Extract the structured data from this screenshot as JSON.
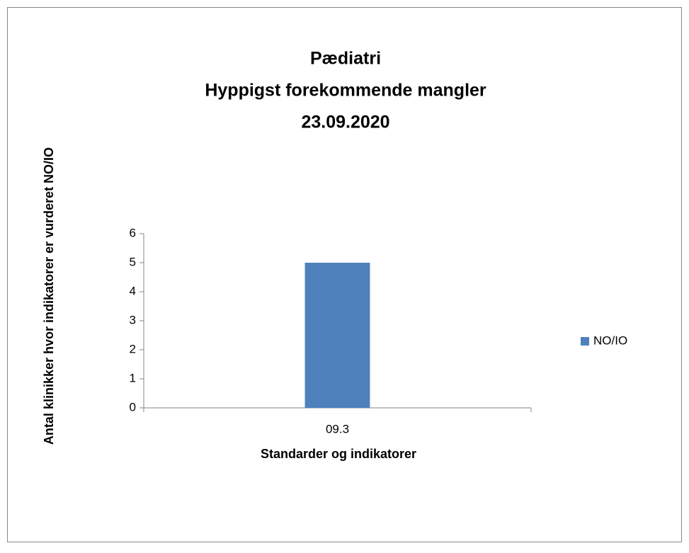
{
  "chart_data": {
    "type": "bar",
    "title": [
      "Pædiatri",
      "Hyppigst forekommende mangler",
      "23.09.2020"
    ],
    "xlabel": "Standarder og indikatorer",
    "ylabel": "Antal klinikker hvor indikatorer er vurderet NO/IO",
    "categories": [
      "09.3"
    ],
    "series": [
      {
        "name": "NO/IO",
        "color": "#4f81bd",
        "values": [
          5
        ]
      }
    ],
    "ylim": [
      0,
      6
    ],
    "yticks": [
      0,
      1,
      2,
      3,
      4,
      5,
      6
    ],
    "legend": "right"
  }
}
